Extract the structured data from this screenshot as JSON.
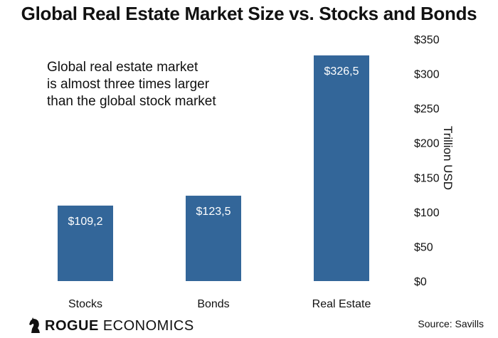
{
  "chart_data": {
    "type": "bar",
    "title": "Global Real Estate Market Size vs. Stocks and Bonds",
    "categories": [
      "Stocks",
      "Bonds",
      "Real Estate"
    ],
    "values": [
      109.2,
      123.5,
      326.5
    ],
    "value_labels": [
      "$109,2",
      "$123,5",
      "$326,5"
    ],
    "ylabel": "Trillion USD",
    "ylim": [
      0,
      350
    ],
    "yticks": [
      0,
      50,
      100,
      150,
      200,
      250,
      300,
      350
    ],
    "ytick_labels": [
      "$0",
      "$50",
      "$100",
      "$150",
      "$200",
      "$250",
      "$300",
      "$350"
    ],
    "yaxis_position": "right",
    "grid": false,
    "bar_color": "#336699",
    "annotation": [
      "Global real estate market",
      "is almost three times larger",
      "than the global stock market"
    ]
  },
  "brand": {
    "part1": "ROGUE",
    "part2": "ECONOMICS",
    "icon": "chess-knight-icon"
  },
  "source": "Source: Savills"
}
